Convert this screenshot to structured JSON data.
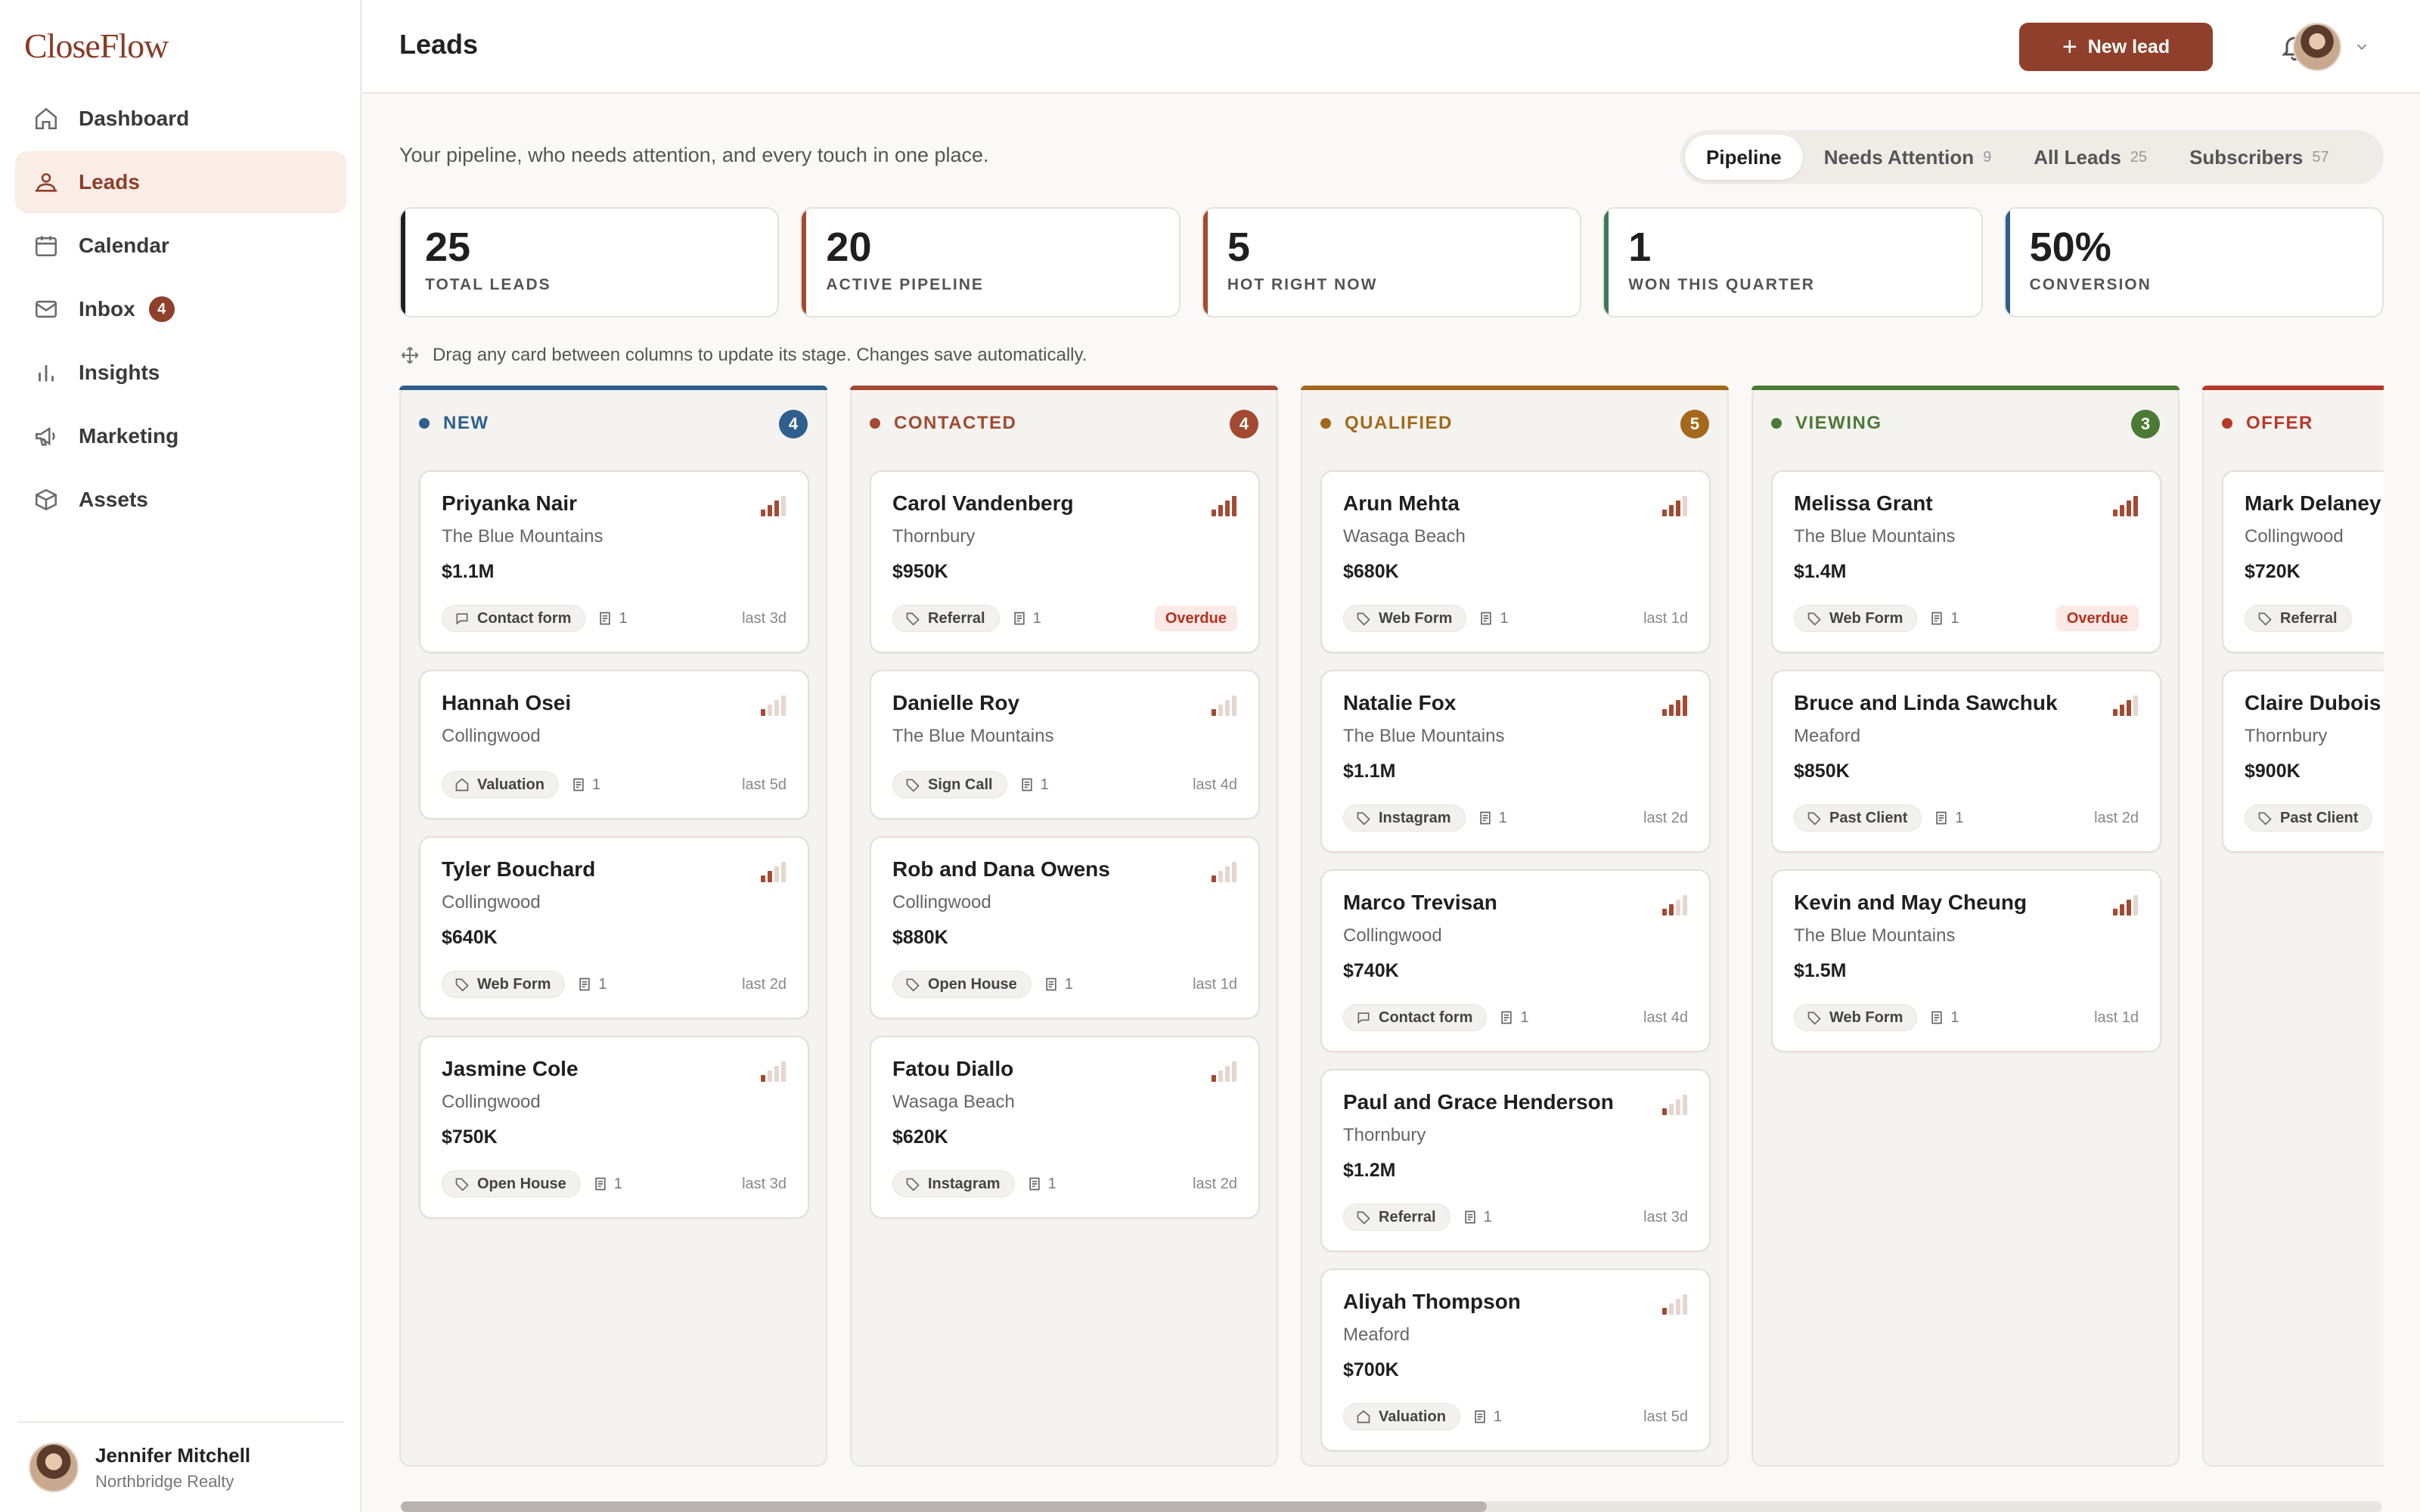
{
  "app": {
    "name": "CloseFlow"
  },
  "sidebar": {
    "items": [
      {
        "label": "Dashboard",
        "icon": "home-icon",
        "active": false
      },
      {
        "label": "Leads",
        "icon": "leads-icon",
        "active": true
      },
      {
        "label": "Calendar",
        "icon": "calendar-icon",
        "active": false
      },
      {
        "label": "Inbox",
        "icon": "mail-icon",
        "active": false,
        "badge": "4"
      },
      {
        "label": "Insights",
        "icon": "bar-chart-icon",
        "active": false
      },
      {
        "label": "Marketing",
        "icon": "megaphone-icon",
        "active": false
      },
      {
        "label": "Assets",
        "icon": "box-icon",
        "active": false
      }
    ],
    "user": {
      "name": "Jennifer Mitchell",
      "company": "Northbridge Realty"
    }
  },
  "header": {
    "title": "Leads",
    "new_lead_label": "New lead"
  },
  "subtitle": "Your pipeline, who needs attention, and every touch in one place.",
  "tabs": [
    {
      "label": "Pipeline",
      "count": "",
      "active": true
    },
    {
      "label": "Needs Attention",
      "count": "9"
    },
    {
      "label": "All Leads",
      "count": "25"
    },
    {
      "label": "Subscribers",
      "count": "57"
    }
  ],
  "stats": [
    {
      "value": "25",
      "label": "TOTAL LEADS",
      "color": "#1f1f1f"
    },
    {
      "value": "20",
      "label": "ACTIVE PIPELINE",
      "color": "#a24a32"
    },
    {
      "value": "5",
      "label": "HOT RIGHT NOW",
      "color": "#a24a32"
    },
    {
      "value": "1",
      "label": "WON THIS QUARTER",
      "color": "#3d7a55"
    },
    {
      "value": "50%",
      "label": "CONVERSION",
      "color": "#2f5f8f"
    }
  ],
  "hint": "Drag any card between columns to update its stage. Changes save automatically.",
  "columns": [
    {
      "name": "NEW",
      "count": "4",
      "color": "#2f5f8f",
      "cards": [
        {
          "name": "Priyanka Nair",
          "location": "The Blue Mountains",
          "amount": "$1.1M",
          "source": "Contact form",
          "source_icon": "chat",
          "notes": "1",
          "last": "last 3d",
          "heat": 3
        },
        {
          "name": "Hannah Osei",
          "location": "Collingwood",
          "amount": "",
          "source": "Valuation",
          "source_icon": "home",
          "notes": "1",
          "last": "last 5d",
          "heat": 1
        },
        {
          "name": "Tyler Bouchard",
          "location": "Collingwood",
          "amount": "$640K",
          "source": "Web Form",
          "source_icon": "tag",
          "notes": "1",
          "last": "last 2d",
          "heat": 2
        },
        {
          "name": "Jasmine Cole",
          "location": "Collingwood",
          "amount": "$750K",
          "source": "Open House",
          "source_icon": "tag",
          "notes": "1",
          "last": "last 3d",
          "heat": 1
        }
      ]
    },
    {
      "name": "CONTACTED",
      "count": "4",
      "color": "#a24a32",
      "cards": [
        {
          "name": "Carol Vandenberg",
          "location": "Thornbury",
          "amount": "$950K",
          "source": "Referral",
          "source_icon": "tag",
          "notes": "1",
          "overdue": "Overdue",
          "heat": 4
        },
        {
          "name": "Danielle Roy",
          "location": "The Blue Mountains",
          "amount": "",
          "source": "Sign Call",
          "source_icon": "tag",
          "notes": "1",
          "last": "last 4d",
          "heat": 1
        },
        {
          "name": "Rob and Dana Owens",
          "location": "Collingwood",
          "amount": "$880K",
          "source": "Open House",
          "source_icon": "tag",
          "notes": "1",
          "last": "last 1d",
          "heat": 1
        },
        {
          "name": "Fatou Diallo",
          "location": "Wasaga Beach",
          "amount": "$620K",
          "source": "Instagram",
          "source_icon": "tag",
          "notes": "1",
          "last": "last 2d",
          "heat": 1
        }
      ]
    },
    {
      "name": "QUALIFIED",
      "count": "5",
      "color": "#a3681a",
      "cards": [
        {
          "name": "Arun Mehta",
          "location": "Wasaga Beach",
          "amount": "$680K",
          "source": "Web Form",
          "source_icon": "tag",
          "notes": "1",
          "last": "last 1d",
          "heat": 3
        },
        {
          "name": "Natalie Fox",
          "location": "The Blue Mountains",
          "amount": "$1.1M",
          "source": "Instagram",
          "source_icon": "tag",
          "notes": "1",
          "last": "last 2d",
          "heat": 4
        },
        {
          "name": "Marco Trevisan",
          "location": "Collingwood",
          "amount": "$740K",
          "source": "Contact form",
          "source_icon": "chat",
          "notes": "1",
          "last": "last 4d",
          "heat": 2
        },
        {
          "name": "Paul and Grace Henderson",
          "location": "Thornbury",
          "amount": "$1.2M",
          "source": "Referral",
          "source_icon": "tag",
          "notes": "1",
          "last": "last 3d",
          "heat": 1
        },
        {
          "name": "Aliyah Thompson",
          "location": "Meaford",
          "amount": "$700K",
          "source": "Valuation",
          "source_icon": "home",
          "notes": "1",
          "last": "last 5d",
          "heat": 1
        }
      ]
    },
    {
      "name": "VIEWING",
      "count": "3",
      "color": "#4b7a35",
      "cards": [
        {
          "name": "Melissa Grant",
          "location": "The Blue Mountains",
          "amount": "$1.4M",
          "source": "Web Form",
          "source_icon": "tag",
          "notes": "1",
          "overdue": "Overdue",
          "heat": 4
        },
        {
          "name": "Bruce and Linda Sawchuk",
          "location": "Meaford",
          "amount": "$850K",
          "source": "Past Client",
          "source_icon": "tag",
          "notes": "1",
          "last": "last 2d",
          "heat": 3
        },
        {
          "name": "Kevin and May Cheung",
          "location": "The Blue Mountains",
          "amount": "$1.5M",
          "source": "Web Form",
          "source_icon": "tag",
          "notes": "1",
          "last": "last 1d",
          "heat": 3
        }
      ]
    },
    {
      "name": "OFFER",
      "count": "",
      "color": "#b8392a",
      "cards": [
        {
          "name": "Mark Delaney",
          "location": "Collingwood",
          "amount": "$720K",
          "source": "Referral",
          "source_icon": "tag",
          "notes": "",
          "last": "",
          "heat": 0
        },
        {
          "name": "Claire Dubois",
          "location": "Thornbury",
          "amount": "$900K",
          "source": "Past Client",
          "source_icon": "tag",
          "notes": "",
          "last": "",
          "heat": 0
        }
      ]
    }
  ],
  "colors": {
    "accent": "#8f3f2b",
    "overdue": "#b8301f"
  }
}
